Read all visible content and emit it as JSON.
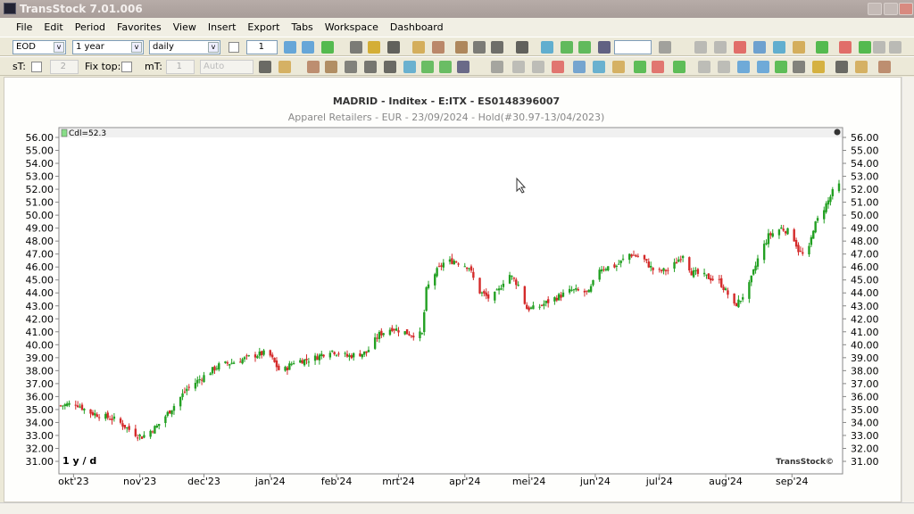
{
  "window": {
    "title": "TransStock  7.01.006"
  },
  "menu": [
    "File",
    "Edit",
    "Period",
    "Favorites",
    "View",
    "Insert",
    "Export",
    "Tabs",
    "Workspace",
    "Dashboard"
  ],
  "toolbar1": {
    "source": "EOD",
    "range": "1 year",
    "interval": "daily",
    "count": "1",
    "search": ""
  },
  "toolbar2": {
    "st_label": "sT:",
    "st_value": "2",
    "fixtop_label": "Fix top:",
    "mt_label": "mT:",
    "mt_value": "1",
    "scale": "Auto"
  },
  "chart": {
    "title": "MADRID - Inditex - E:ITX - ES0148396007",
    "subtitle": "Apparel Retailers - EUR - 23/09/2024 - Hold(#30.97-13/04/2023)",
    "legend": "Cdl=52.3",
    "period_label": "1 y / d",
    "watermark": "TransStock©"
  },
  "colors": {
    "up": "#22a022",
    "down": "#d42a2a",
    "grid": "#e8e8e8"
  },
  "chart_data": {
    "type": "candlestick",
    "ylim": [
      30.5,
      56.5
    ],
    "yticks": [
      "56.00",
      "55.00",
      "54.00",
      "53.00",
      "52.00",
      "51.00",
      "50.00",
      "49.00",
      "48.00",
      "47.00",
      "46.00",
      "45.00",
      "44.00",
      "43.00",
      "42.00",
      "41.00",
      "40.00",
      "39.00",
      "38.00",
      "37.00",
      "36.00",
      "35.00",
      "34.00",
      "33.00",
      "32.00",
      "31.00"
    ],
    "xlim": [
      "2023-09-25",
      "2024-09-23"
    ],
    "xticks": [
      {
        "label": "okt'23",
        "date": "2023-10-01"
      },
      {
        "label": "nov'23",
        "date": "2023-11-01"
      },
      {
        "label": "dec'23",
        "date": "2023-12-01"
      },
      {
        "label": "jan'24",
        "date": "2024-01-01"
      },
      {
        "label": "feb'24",
        "date": "2024-02-01"
      },
      {
        "label": "mrt'24",
        "date": "2024-03-01"
      },
      {
        "label": "apr'24",
        "date": "2024-04-01"
      },
      {
        "label": "mei'24",
        "date": "2024-05-01"
      },
      {
        "label": "jun'24",
        "date": "2024-06-01"
      },
      {
        "label": "jul'24",
        "date": "2024-07-01"
      },
      {
        "label": "aug'24",
        "date": "2024-08-01"
      },
      {
        "label": "sep'24",
        "date": "2024-09-01"
      }
    ],
    "closes": [
      [
        "2023-09-25",
        35.3
      ],
      [
        "2023-10-02",
        35.5
      ],
      [
        "2023-10-08",
        34.8
      ],
      [
        "2023-10-21",
        34.2
      ],
      [
        "2023-10-29",
        33.2
      ],
      [
        "2023-11-02",
        32.9
      ],
      [
        "2023-11-09",
        33.7
      ],
      [
        "2023-11-17",
        35.3
      ],
      [
        "2023-11-23",
        36.6
      ],
      [
        "2023-12-02",
        37.7
      ],
      [
        "2023-12-08",
        38.4
      ],
      [
        "2023-12-16",
        38.7
      ],
      [
        "2023-12-25",
        39.2
      ],
      [
        "2023-12-31",
        39.4
      ],
      [
        "2024-01-06",
        37.8
      ],
      [
        "2024-01-12",
        38.7
      ],
      [
        "2024-01-21",
        38.9
      ],
      [
        "2024-01-29",
        39.6
      ],
      [
        "2024-02-06",
        39.1
      ],
      [
        "2024-02-15",
        39.4
      ],
      [
        "2024-02-21",
        40.8
      ],
      [
        "2024-02-27",
        41.3
      ],
      [
        "2024-03-07",
        40.8
      ],
      [
        "2024-03-12",
        40.8
      ],
      [
        "2024-03-14",
        44.2
      ],
      [
        "2024-03-17",
        45.3
      ],
      [
        "2024-03-22",
        46.3
      ],
      [
        "2024-03-27",
        46.5
      ],
      [
        "2024-04-03",
        46.0
      ],
      [
        "2024-04-07",
        44.2
      ],
      [
        "2024-04-13",
        43.5
      ],
      [
        "2024-04-17",
        44.2
      ],
      [
        "2024-04-21",
        45.6
      ],
      [
        "2024-04-26",
        44.6
      ],
      [
        "2024-04-30",
        42.8
      ],
      [
        "2024-05-04",
        42.8
      ],
      [
        "2024-05-12",
        43.5
      ],
      [
        "2024-05-21",
        44.2
      ],
      [
        "2024-05-29",
        44.0
      ],
      [
        "2024-06-03",
        45.9
      ],
      [
        "2024-06-11",
        46.1
      ],
      [
        "2024-06-17",
        47.0
      ],
      [
        "2024-06-23",
        46.7
      ],
      [
        "2024-06-29",
        45.6
      ],
      [
        "2024-07-06",
        45.8
      ],
      [
        "2024-07-12",
        47.0
      ],
      [
        "2024-07-16",
        45.6
      ],
      [
        "2024-07-22",
        45.3
      ],
      [
        "2024-07-29",
        44.9
      ],
      [
        "2024-08-02",
        43.9
      ],
      [
        "2024-08-04",
        42.8
      ],
      [
        "2024-08-08",
        43.5
      ],
      [
        "2024-08-12",
        44.6
      ],
      [
        "2024-08-16",
        46.6
      ],
      [
        "2024-08-21",
        48.4
      ],
      [
        "2024-08-27",
        49.0
      ],
      [
        "2024-09-01",
        48.6
      ],
      [
        "2024-09-04",
        47.3
      ],
      [
        "2024-09-08",
        46.6
      ],
      [
        "2024-09-11",
        49.0
      ],
      [
        "2024-09-15",
        50.3
      ],
      [
        "2024-09-18",
        51.1
      ],
      [
        "2024-09-21",
        52.1
      ],
      [
        "2024-09-23",
        52.3
      ]
    ]
  }
}
